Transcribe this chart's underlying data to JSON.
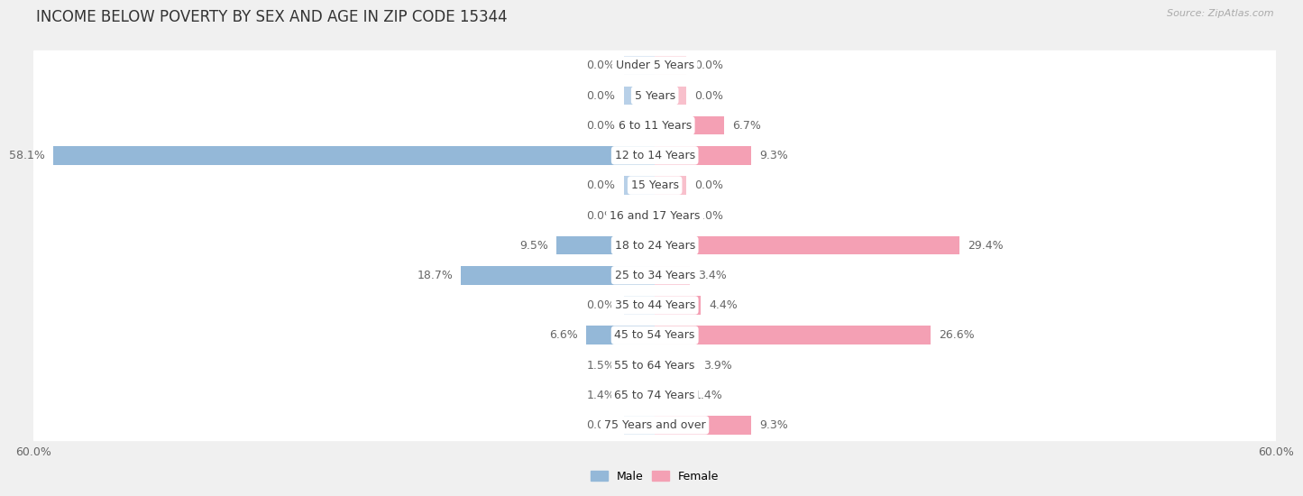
{
  "title": "INCOME BELOW POVERTY BY SEX AND AGE IN ZIP CODE 15344",
  "source": "Source: ZipAtlas.com",
  "categories": [
    "Under 5 Years",
    "5 Years",
    "6 to 11 Years",
    "12 to 14 Years",
    "15 Years",
    "16 and 17 Years",
    "18 to 24 Years",
    "25 to 34 Years",
    "35 to 44 Years",
    "45 to 54 Years",
    "55 to 64 Years",
    "65 to 74 Years",
    "75 Years and over"
  ],
  "male_values": [
    0.0,
    0.0,
    0.0,
    58.1,
    0.0,
    0.0,
    9.5,
    18.7,
    0.0,
    6.6,
    1.5,
    1.4,
    0.0
  ],
  "female_values": [
    0.0,
    0.0,
    6.7,
    9.3,
    0.0,
    0.0,
    29.4,
    3.4,
    4.4,
    26.6,
    3.9,
    1.4,
    9.3
  ],
  "male_color": "#94b8d8",
  "female_color": "#f4a0b4",
  "stub_male_color": "#b8d0e8",
  "stub_female_color": "#f8c0cc",
  "label_color": "#666666",
  "label_color_inside": "#ffffff",
  "xlim": 60.0,
  "min_bar_display": 3.0,
  "background_color": "#f0f0f0",
  "row_bg_color": "#ffffff",
  "separator_color": "#d8d8d8",
  "title_fontsize": 12,
  "label_fontsize": 9,
  "category_fontsize": 9,
  "axis_fontsize": 9,
  "legend_fontsize": 9
}
